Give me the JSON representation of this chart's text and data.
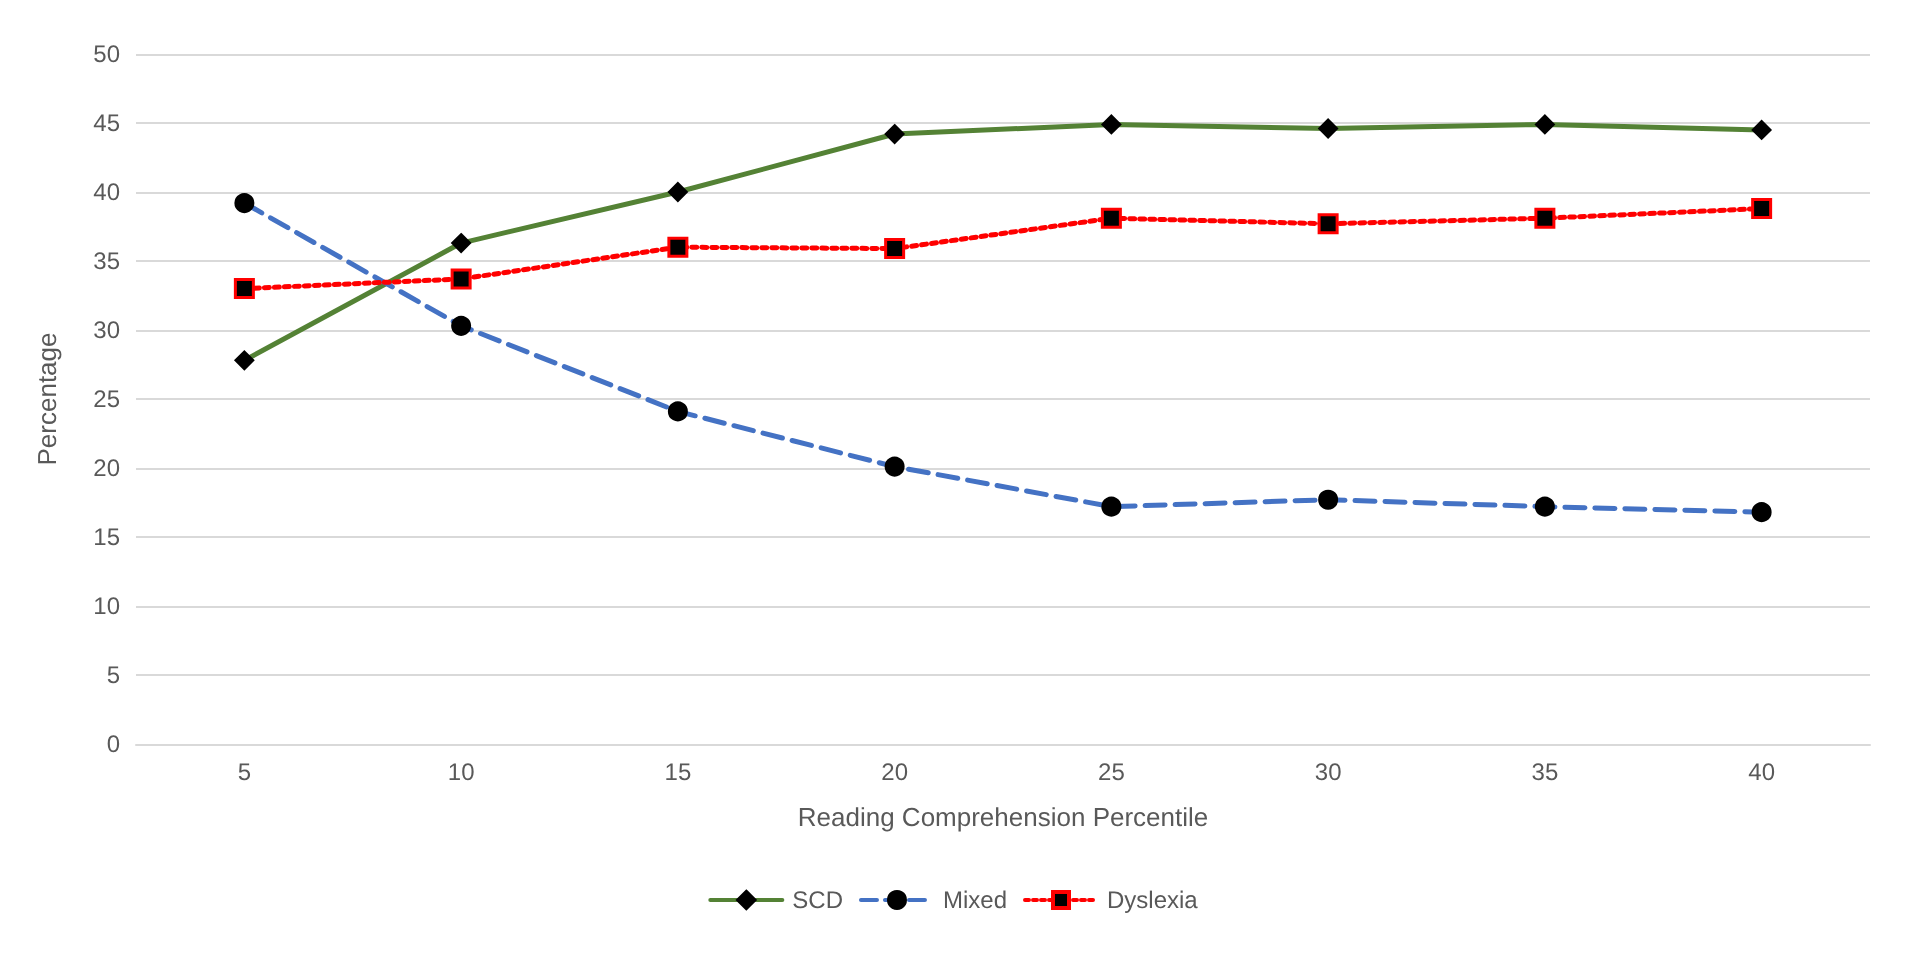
{
  "chart_data": {
    "type": "line",
    "xlabel": "Reading Comprehension Percentile",
    "ylabel": "Percentage",
    "categories": [
      "5",
      "10",
      "15",
      "20",
      "25",
      "30",
      "35",
      "40"
    ],
    "ylim": [
      0,
      50
    ],
    "yticks": [
      0,
      5,
      10,
      15,
      20,
      25,
      30,
      35,
      40,
      45,
      50
    ],
    "grid": "y",
    "legend": "bottom",
    "series": [
      {
        "name": "SCD",
        "color": "#548235",
        "marker": "diamond",
        "line_style": "solid",
        "values": [
          27.8,
          36.3,
          40.0,
          44.2,
          44.9,
          44.6,
          44.9,
          44.5
        ]
      },
      {
        "name": "Mixed",
        "color": "#4472c4",
        "marker": "circle",
        "line_style": "dashed",
        "values": [
          39.2,
          30.3,
          24.1,
          20.1,
          17.2,
          17.7,
          17.2,
          16.8
        ]
      },
      {
        "name": "Dyslexia",
        "color": "#ff0000",
        "marker": "square",
        "line_style": "dotted",
        "values": [
          33.0,
          33.7,
          36.0,
          35.9,
          38.1,
          37.7,
          38.1,
          38.8
        ]
      }
    ]
  }
}
